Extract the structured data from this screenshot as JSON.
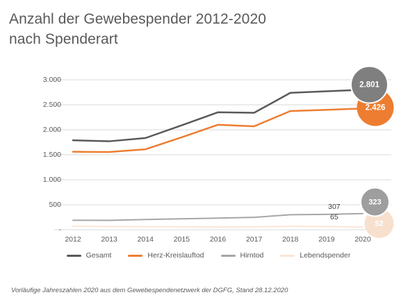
{
  "title": {
    "line1": "Anzahl der Gewebespender 2012-2020",
    "line2": "nach Spenderart"
  },
  "footer": "Vorläufige Jahreszahlen 2020 aus dem Gewebespendenetzwerk der DGFG, Stand 28.12.2020",
  "colors": {
    "background": "#ffffff",
    "title_text": "#595959",
    "axis_text": "#595959",
    "annotation_text": "#404040",
    "gridline": "#d9d9d9",
    "gesamt": "#595959",
    "herz_kreislauftod": "#ed7d31",
    "hirntod": "#a6a6a6",
    "lebendspender": "#fbe5d6",
    "bubble_gesamt": "#7f7f7f",
    "bubble_herz": "#ed7d31",
    "bubble_hirntod": "#9e9e9e",
    "bubble_lebendspender": "#f8e0ce"
  },
  "legend": {
    "items": [
      {
        "label": "Gesamt",
        "color": "#595959"
      },
      {
        "label": "Herz-Kreislauftod",
        "color": "#ed7d31"
      },
      {
        "label": "Hirntod",
        "color": "#a6a6a6"
      },
      {
        "label": "Lebendspender",
        "color": "#fbe5d6"
      }
    ]
  },
  "chart_data": {
    "type": "line",
    "title": "Anzahl der Gewebespender 2012-2020 nach Spenderart",
    "categories": [
      "2012",
      "2013",
      "2014",
      "2015",
      "2016",
      "2017",
      "2018",
      "2019",
      "2020"
    ],
    "series": [
      {
        "name": "Lebendspender",
        "color": "#fbe5d6",
        "width": 2,
        "values": [
          70,
          64,
          60,
          58,
          55,
          57,
          68,
          65,
          52
        ]
      },
      {
        "name": "Hirntod",
        "color": "#a6a6a6",
        "width": 2,
        "values": [
          190,
          188,
          205,
          218,
          232,
          248,
          300,
          307,
          323
        ]
      },
      {
        "name": "Herz-Kreislauftod",
        "color": "#ed7d31",
        "width": 2.5,
        "values": [
          1560,
          1555,
          1610,
          1850,
          2100,
          2070,
          2375,
          2400,
          2426
        ]
      },
      {
        "name": "Gesamt",
        "color": "#595959",
        "width": 2.5,
        "values": [
          1790,
          1770,
          1835,
          2090,
          2350,
          2340,
          2740,
          2770,
          2801
        ]
      }
    ],
    "ylim": [
      0,
      3000
    ],
    "grid": "horizontal",
    "legend_position": "bottom",
    "yticks": [
      {
        "label": "3.000",
        "value": 3000
      },
      {
        "label": "2.500",
        "value": 2500
      },
      {
        "label": "2.000",
        "value": 2000
      },
      {
        "label": "1.500",
        "value": 1500
      },
      {
        "label": "1.000",
        "value": 1000
      },
      {
        "label": "500",
        "value": 500
      },
      {
        "label": "-",
        "value": 0
      }
    ],
    "end_bubbles": [
      {
        "series": "Herz-Kreislauftod",
        "label": "2.426",
        "value": 2426,
        "fill": "#ed7d31",
        "text_color": "#ffffff"
      },
      {
        "series": "Gesamt",
        "label": "2.801",
        "value": 2801,
        "fill": "#7f7f7f",
        "text_color": "#ffffff"
      },
      {
        "series": "Lebendspender",
        "label": "52",
        "value": 52,
        "fill": "#f8e0ce",
        "text_color": "#ffffff"
      },
      {
        "series": "Hirntod",
        "label": "323",
        "value": 323,
        "fill": "#9e9e9e",
        "text_color": "#ffffff"
      }
    ],
    "annotations": [
      {
        "label": "307",
        "series": "Hirntod",
        "category": "2019",
        "value": 307
      },
      {
        "label": "65",
        "series": "Lebendspender",
        "category": "2019",
        "value": 65
      }
    ]
  }
}
